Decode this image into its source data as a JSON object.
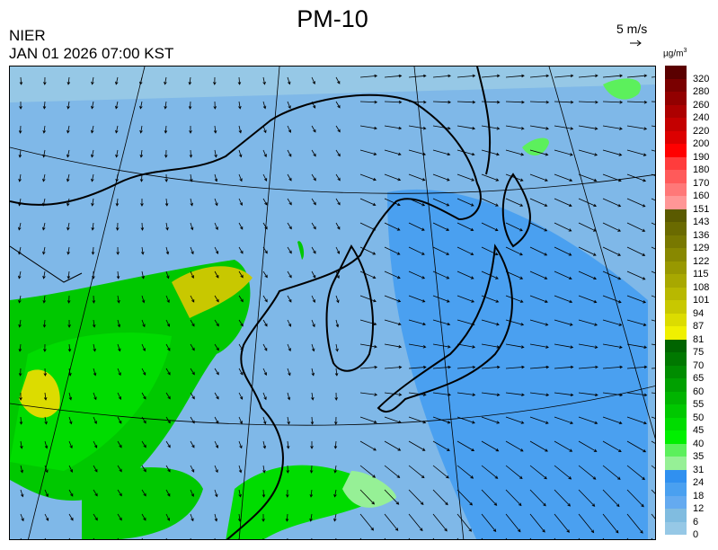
{
  "title": "PM-10",
  "source": "NIER",
  "timestamp": "JAN 01 2026 07:00 KST",
  "wind_scale": {
    "label": "5 m/s",
    "icon": "arrow-right-icon"
  },
  "legend": {
    "unit": "µg/m",
    "unit_sup": "3",
    "labels": [
      "320",
      "280",
      "260",
      "240",
      "220",
      "200",
      "190",
      "180",
      "170",
      "160",
      "151",
      "143",
      "136",
      "129",
      "122",
      "115",
      "108",
      "101",
      "94",
      "87",
      "81",
      "75",
      "70",
      "65",
      "60",
      "55",
      "50",
      "45",
      "40",
      "35",
      "31",
      "24",
      "18",
      "12",
      "6",
      "0"
    ],
    "colors": [
      "#5a0000",
      "#7a0000",
      "#920000",
      "#ac0000",
      "#c40000",
      "#dc0000",
      "#ff0000",
      "#ff3c3c",
      "#ff5a5a",
      "#ff7878",
      "#ff9696",
      "#5a5a00",
      "#6a6a00",
      "#787800",
      "#888800",
      "#989800",
      "#a8a800",
      "#b8b800",
      "#c8c800",
      "#dcdc00",
      "#f0f000",
      "#006400",
      "#007800",
      "#008c00",
      "#00a000",
      "#00b400",
      "#00c800",
      "#00dc00",
      "#00f000",
      "#5cf05c",
      "#96f096",
      "#3090f0",
      "#4aa0f0",
      "#64aaf0",
      "#80bce0",
      "#96c8e6"
    ]
  }
}
